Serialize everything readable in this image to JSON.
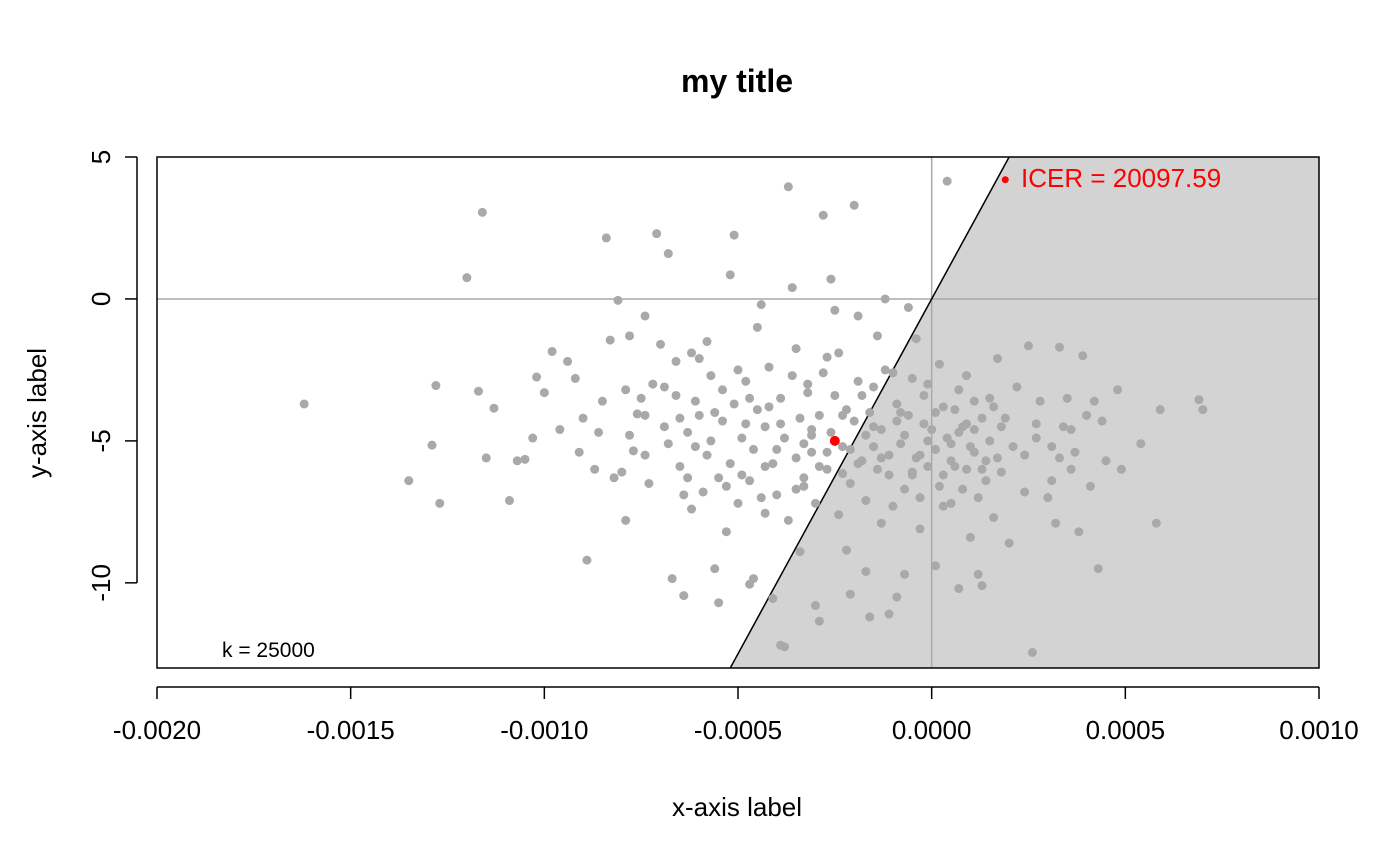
{
  "chart_data": {
    "type": "scatter",
    "title": "my title",
    "xlabel": "x-axis label",
    "ylabel": "y-axis label",
    "xlim": [
      -0.002,
      0.001
    ],
    "ylim": [
      -13,
      5
    ],
    "x_ticks": [
      {
        "value": -0.002,
        "label": "-0.0020"
      },
      {
        "value": -0.0015,
        "label": "-0.0015"
      },
      {
        "value": -0.001,
        "label": "-0.0010"
      },
      {
        "value": -0.0005,
        "label": "-0.0005"
      },
      {
        "value": 0.0,
        "label": "0.0000"
      },
      {
        "value": 0.0005,
        "label": "0.0005"
      },
      {
        "value": 0.001,
        "label": "0.0010"
      }
    ],
    "y_ticks": [
      {
        "value": 5,
        "label": "5"
      },
      {
        "value": 0,
        "label": "0"
      },
      {
        "value": -5,
        "label": "-5"
      },
      {
        "value": -10,
        "label": "-10"
      }
    ],
    "wtp_threshold": {
      "k": 25000,
      "label": "k = 25000"
    },
    "point_color": "#a9a9a9",
    "region_color": "#d3d3d3",
    "mean_color": "#ff0000",
    "mean_point": {
      "x": -0.00025,
      "y": -5.0
    },
    "icer": {
      "x": 0.00019,
      "y": 4.2,
      "label": "ICER = 20097.59"
    },
    "points": [
      [
        -0.00162,
        -3.7
      ],
      [
        -0.00135,
        -6.4
      ],
      [
        -0.00129,
        -5.15
      ],
      [
        -0.00128,
        -3.05
      ],
      [
        -0.00127,
        -7.2
      ],
      [
        -0.0012,
        0.75
      ],
      [
        -0.00117,
        -3.25
      ],
      [
        -0.00116,
        3.05
      ],
      [
        -0.00115,
        -5.6
      ],
      [
        -0.00113,
        -3.85
      ],
      [
        -0.00109,
        -7.1
      ],
      [
        -0.00107,
        -5.7
      ],
      [
        -0.00105,
        -5.65
      ],
      [
        -0.00103,
        -4.9
      ],
      [
        -0.00102,
        -2.75
      ],
      [
        -0.001,
        -3.3
      ],
      [
        -0.00098,
        -1.85
      ],
      [
        -0.00096,
        -4.6
      ],
      [
        -0.00094,
        -2.2
      ],
      [
        -0.00092,
        -2.8
      ],
      [
        -0.0009,
        -4.2
      ],
      [
        -0.00089,
        -9.2
      ],
      [
        -0.00087,
        -6.0
      ],
      [
        -0.00085,
        -3.6
      ],
      [
        -0.00084,
        2.15
      ],
      [
        -0.00083,
        -1.45
      ],
      [
        -0.00081,
        -0.05
      ],
      [
        -0.0008,
        -6.1
      ],
      [
        -0.00079,
        -7.8
      ],
      [
        -0.00078,
        -1.3
      ],
      [
        -0.00077,
        -5.35
      ],
      [
        -0.00076,
        -4.05
      ],
      [
        -0.00075,
        -3.5
      ],
      [
        -0.00074,
        -0.6
      ],
      [
        -0.00073,
        -6.5
      ],
      [
        -0.00071,
        2.3
      ],
      [
        -0.0007,
        -1.6
      ],
      [
        -0.00069,
        -3.1
      ],
      [
        -0.00068,
        1.6
      ],
      [
        -0.00067,
        -9.85
      ],
      [
        -0.00066,
        -2.2
      ],
      [
        -0.00065,
        -5.9
      ],
      [
        -0.00064,
        -10.45
      ],
      [
        -0.00063,
        -4.7
      ],
      [
        -0.00062,
        -7.4
      ],
      [
        -0.00061,
        -3.6
      ],
      [
        -0.0006,
        -2.1
      ],
      [
        -0.00059,
        -6.8
      ],
      [
        -0.00058,
        -1.5
      ],
      [
        -0.00057,
        -5.0
      ],
      [
        -0.00056,
        -9.5
      ],
      [
        -0.00055,
        -10.7
      ],
      [
        -0.00054,
        -3.2
      ],
      [
        -0.00053,
        -8.2
      ],
      [
        -0.00052,
        0.85
      ],
      [
        -0.00051,
        2.25
      ],
      [
        -0.0005,
        -2.5
      ],
      [
        -0.00049,
        -6.2
      ],
      [
        -0.00048,
        -4.4
      ],
      [
        -0.00047,
        -10.05
      ],
      [
        -0.00046,
        -9.85
      ],
      [
        -0.00045,
        -1.0
      ],
      [
        -0.00044,
        -0.2
      ],
      [
        -0.00043,
        -7.55
      ],
      [
        -0.00042,
        -3.8
      ],
      [
        -0.00041,
        -10.55
      ],
      [
        -0.0004,
        -5.3
      ],
      [
        -0.00039,
        -12.2
      ],
      [
        -0.00038,
        -12.25
      ],
      [
        -0.00037,
        3.95
      ],
      [
        -0.00036,
        0.4
      ],
      [
        -0.00035,
        -1.75
      ],
      [
        -0.00034,
        -8.9
      ],
      [
        -0.00033,
        -6.6
      ],
      [
        -0.00032,
        -3.0
      ],
      [
        -0.00031,
        -4.8
      ],
      [
        -0.0003,
        -10.8
      ],
      [
        -0.00029,
        -11.35
      ],
      [
        -0.00028,
        2.95
      ],
      [
        -0.00027,
        -2.05
      ],
      [
        -0.00026,
        0.7
      ],
      [
        -0.00025,
        -0.4
      ],
      [
        -0.00024,
        -1.9
      ],
      [
        -0.00023,
        -6.15
      ],
      [
        -0.00022,
        -8.85
      ],
      [
        -0.00021,
        -10.4
      ],
      [
        -0.0002,
        3.3
      ],
      [
        -0.00019,
        -0.6
      ],
      [
        -0.00018,
        -3.4
      ],
      [
        -0.00017,
        -9.6
      ],
      [
        -0.00016,
        -11.2
      ],
      [
        -0.00015,
        -5.2
      ],
      [
        -0.00014,
        -1.3
      ],
      [
        -0.00013,
        -7.9
      ],
      [
        -0.00012,
        0.0
      ],
      [
        -0.00011,
        -11.1
      ],
      [
        -0.0001,
        -2.6
      ],
      [
        -9e-05,
        -10.5
      ],
      [
        -8e-05,
        -4.0
      ],
      [
        -7e-05,
        -9.7
      ],
      [
        -6e-05,
        -0.3
      ],
      [
        -5e-05,
        -6.2
      ],
      [
        -4e-05,
        -1.4
      ],
      [
        -3e-05,
        -8.1
      ],
      [
        -2e-05,
        -3.4
      ],
      [
        -1e-05,
        -5.9
      ],
      [
        0.0,
        -4.6
      ],
      [
        1e-05,
        -9.4
      ],
      [
        2e-05,
        -2.3
      ],
      [
        3e-05,
        -7.3
      ],
      [
        4e-05,
        4.15
      ],
      [
        5e-05,
        -5.1
      ],
      [
        6e-05,
        -3.9
      ],
      [
        7e-05,
        -10.2
      ],
      [
        8e-05,
        -6.7
      ],
      [
        9e-05,
        -2.7
      ],
      [
        0.0001,
        -8.4
      ],
      [
        0.00011,
        -4.6
      ],
      [
        0.00012,
        -9.7
      ],
      [
        0.00013,
        -10.1
      ],
      [
        0.00014,
        -5.7
      ],
      [
        0.00015,
        -3.5
      ],
      [
        0.00016,
        -7.7
      ],
      [
        0.00017,
        -2.1
      ],
      [
        0.00018,
        -6.1
      ],
      [
        0.00019,
        -4.2
      ],
      [
        0.0002,
        -8.6
      ],
      [
        0.00021,
        -5.2
      ],
      [
        0.00022,
        -3.1
      ],
      [
        0.00024,
        -6.8
      ],
      [
        0.00025,
        -1.65
      ],
      [
        0.00026,
        -12.45
      ],
      [
        0.00027,
        -4.9
      ],
      [
        0.00028,
        -3.6
      ],
      [
        0.0003,
        -7.0
      ],
      [
        0.00031,
        -5.2
      ],
      [
        0.00032,
        -7.9
      ],
      [
        0.00033,
        -1.7
      ],
      [
        0.00034,
        -4.5
      ],
      [
        0.00035,
        -3.5
      ],
      [
        0.00036,
        -6.0
      ],
      [
        0.00037,
        -5.4
      ],
      [
        0.00038,
        -8.2
      ],
      [
        0.00039,
        -2.0
      ],
      [
        0.0004,
        -4.1
      ],
      [
        0.00041,
        -6.6
      ],
      [
        0.00042,
        -3.6
      ],
      [
        0.00043,
        -9.5
      ],
      [
        0.00044,
        -4.3
      ],
      [
        0.00045,
        -5.7
      ],
      [
        0.00048,
        -3.2
      ],
      [
        0.00049,
        -6.0
      ],
      [
        0.00054,
        -5.1
      ],
      [
        0.00058,
        -7.9
      ],
      [
        0.00059,
        -3.9
      ],
      [
        0.00069,
        -3.55
      ],
      [
        0.0007,
        -3.9
      ],
      [
        -0.00072,
        -3.0
      ],
      [
        -0.00069,
        -4.5
      ],
      [
        -0.00066,
        -3.4
      ],
      [
        -0.00064,
        -6.9
      ],
      [
        -0.00062,
        -1.9
      ],
      [
        -0.0006,
        -4.1
      ],
      [
        -0.00058,
        -5.5
      ],
      [
        -0.00057,
        -2.7
      ],
      [
        -0.00055,
        -6.3
      ],
      [
        -0.00054,
        -4.3
      ],
      [
        -0.00052,
        -5.8
      ],
      [
        -0.00051,
        -3.7
      ],
      [
        -0.0005,
        -7.2
      ],
      [
        -0.00049,
        -4.9
      ],
      [
        -0.00048,
        -2.9
      ],
      [
        -0.00047,
        -6.4
      ],
      [
        -0.00046,
        -5.3
      ],
      [
        -0.00045,
        -3.9
      ],
      [
        -0.00044,
        -7.0
      ],
      [
        -0.00043,
        -4.5
      ],
      [
        -0.00042,
        -2.4
      ],
      [
        -0.00041,
        -5.8
      ],
      [
        -0.0004,
        -6.9
      ],
      [
        -0.00039,
        -3.5
      ],
      [
        -0.00038,
        -4.9
      ],
      [
        -0.00037,
        -7.8
      ],
      [
        -0.00036,
        -2.7
      ],
      [
        -0.00035,
        -5.6
      ],
      [
        -0.00034,
        -4.2
      ],
      [
        -0.00033,
        -6.3
      ],
      [
        -0.00032,
        -3.3
      ],
      [
        -0.00031,
        -5.4
      ],
      [
        -0.0003,
        -7.2
      ],
      [
        -0.00029,
        -4.1
      ],
      [
        -0.00028,
        -2.6
      ],
      [
        -0.00027,
        -6.0
      ],
      [
        -0.00026,
        -4.7
      ],
      [
        -0.00025,
        -3.4
      ],
      [
        -0.00024,
        -7.6
      ],
      [
        -0.00023,
        -5.2
      ],
      [
        -0.00022,
        -3.9
      ],
      [
        -0.00021,
        -6.5
      ],
      [
        -0.0002,
        -4.3
      ],
      [
        -0.00019,
        -2.9
      ],
      [
        -0.00018,
        -5.7
      ],
      [
        -0.00017,
        -7.1
      ],
      [
        -0.00016,
        -4.0
      ],
      [
        -0.00015,
        -3.1
      ],
      [
        -0.00014,
        -6.0
      ],
      [
        -0.00013,
        -4.6
      ],
      [
        -0.00012,
        -2.5
      ],
      [
        -0.00011,
        -5.5
      ],
      [
        -0.0001,
        -7.3
      ],
      [
        -9e-05,
        -3.7
      ],
      [
        -8e-05,
        -5.1
      ],
      [
        -7e-05,
        -6.7
      ],
      [
        -6e-05,
        -4.1
      ],
      [
        -5e-05,
        -2.8
      ],
      [
        -4e-05,
        -5.6
      ],
      [
        -3e-05,
        -7.0
      ],
      [
        -2e-05,
        -4.4
      ],
      [
        -1e-05,
        -3.0
      ],
      [
        1e-05,
        -5.3
      ],
      [
        2e-05,
        -6.6
      ],
      [
        3e-05,
        -3.8
      ],
      [
        4e-05,
        -4.9
      ],
      [
        5e-05,
        -7.2
      ],
      [
        6e-05,
        -5.9
      ],
      [
        7e-05,
        -3.2
      ],
      [
        8e-05,
        -4.5
      ],
      [
        9e-05,
        -6.0
      ],
      [
        0.0001,
        -5.2
      ],
      [
        0.00011,
        -3.6
      ],
      [
        0.00012,
        -7.0
      ],
      [
        0.00013,
        -4.2
      ],
      [
        0.00014,
        -6.4
      ],
      [
        0.00015,
        -5.0
      ],
      [
        0.00016,
        -3.8
      ],
      [
        0.00017,
        -5.6
      ],
      [
        0.00018,
        -4.5
      ],
      [
        -0.00061,
        -5.2
      ],
      [
        -0.00056,
        -4.0
      ],
      [
        -0.00053,
        -6.6
      ],
      [
        -0.00047,
        -3.5
      ],
      [
        -0.00043,
        -5.9
      ],
      [
        -0.00039,
        -4.4
      ],
      [
        -0.00035,
        -6.7
      ],
      [
        -0.00031,
        -4.6
      ],
      [
        -0.00027,
        -5.4
      ],
      [
        -0.00023,
        -4.1
      ],
      [
        -0.00019,
        -5.8
      ],
      [
        -0.00015,
        -4.5
      ],
      [
        -0.00011,
        -6.2
      ],
      [
        -7e-05,
        -4.8
      ],
      [
        -3e-05,
        -5.5
      ],
      [
        1e-05,
        -4.0
      ],
      [
        5e-05,
        -5.7
      ],
      [
        9e-05,
        -4.4
      ],
      [
        0.00013,
        -6.0
      ],
      [
        -0.00033,
        -5.1
      ],
      [
        -0.00029,
        -5.9
      ],
      [
        -0.00021,
        -5.3
      ],
      [
        -0.00017,
        -4.8
      ],
      [
        -0.00013,
        -5.6
      ],
      [
        -9e-05,
        -4.3
      ],
      [
        -5e-05,
        -6.1
      ],
      [
        -1e-05,
        -5.0
      ],
      [
        3e-05,
        -6.2
      ],
      [
        7e-05,
        -4.7
      ],
      [
        0.00011,
        -5.4
      ],
      [
        -0.00078,
        -4.8
      ],
      [
        -0.00074,
        -5.5
      ],
      [
        -0.00068,
        -5.1
      ],
      [
        -0.00065,
        -4.2
      ],
      [
        -0.00063,
        -6.3
      ],
      [
        0.00024,
        -5.5
      ],
      [
        0.00027,
        -4.4
      ],
      [
        0.00031,
        -6.4
      ],
      [
        0.00033,
        -5.6
      ],
      [
        0.00036,
        -4.6
      ],
      [
        -0.00091,
        -5.4
      ],
      [
        -0.00086,
        -4.7
      ],
      [
        -0.00082,
        -6.3
      ],
      [
        -0.00079,
        -3.2
      ],
      [
        -0.00074,
        -4.1
      ]
    ]
  }
}
